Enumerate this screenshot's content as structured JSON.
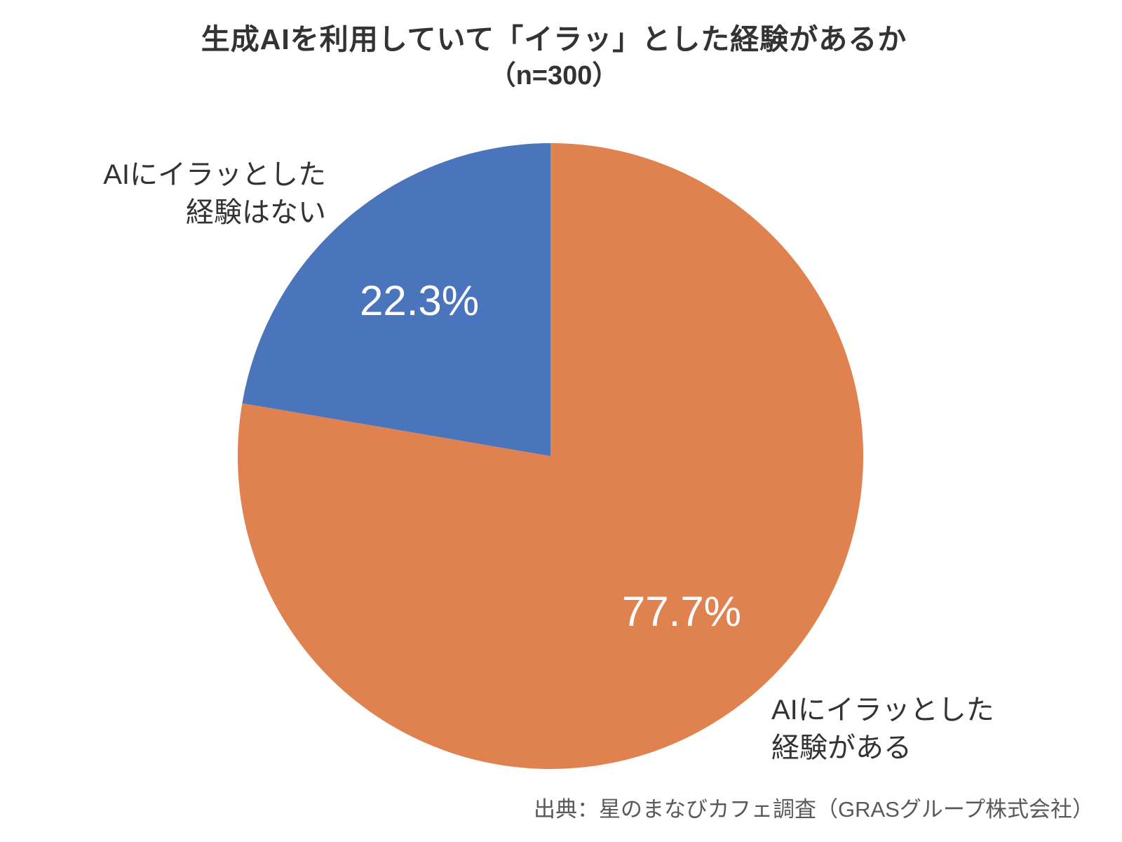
{
  "chart_data": {
    "type": "pie",
    "title": "生成AIを利用していて「イラッ」とした経験があるか",
    "subtitle": "（n=300）",
    "n": 300,
    "start_angle_deg": 0,
    "direction": "clockwise",
    "legend_position": "none",
    "slices": [
      {
        "label": "AIにイラッとした経験がある",
        "label_lines": [
          "AIにイラッとした",
          "経験がある"
        ],
        "value": 77.7,
        "pct_label": "77.7%",
        "color": "#E0824F"
      },
      {
        "label": "AIにイラッとした経験はない",
        "label_lines": [
          "AIにイラッとした",
          "経験はない"
        ],
        "value": 22.3,
        "pct_label": "22.3%",
        "color": "#4A74BB"
      }
    ],
    "source": "出典：星のまなびカフェ調査（GRASグループ株式会社）"
  }
}
